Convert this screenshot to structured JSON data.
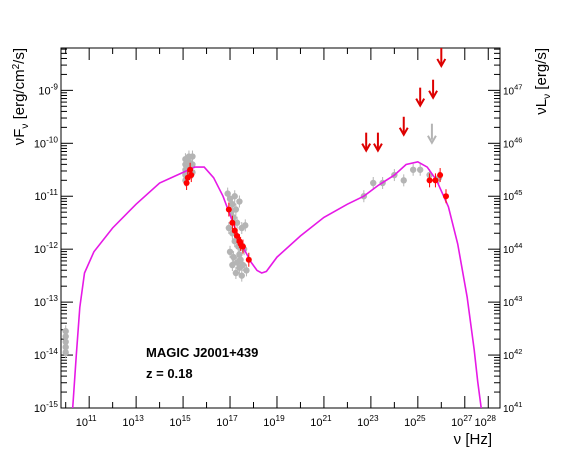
{
  "chart_data": {
    "type": "scatter",
    "annotations": [
      "MAGIC J2001+439",
      "z = 0.18"
    ],
    "xlabel": {
      "base": "ν",
      "unit": "[Hz]"
    },
    "ylabel": {
      "base": "νF",
      "sub": "ν",
      "unit_pre": "[erg/cm",
      "unit_sup": "2",
      "unit_post": "/s]"
    },
    "y2label": {
      "base": "νL",
      "sub": "ν",
      "unit": "[erg/s]"
    },
    "x_log_range": [
      9.8,
      28.5
    ],
    "y_log_range": [
      -15,
      -8.2
    ],
    "y2_log_range": [
      41,
      47.8
    ],
    "x_ticks": [
      {
        "exp": 11,
        "label": "10",
        "sup": "11"
      },
      {
        "exp": 13,
        "label": "10",
        "sup": "13"
      },
      {
        "exp": 15,
        "label": "10",
        "sup": "15"
      },
      {
        "exp": 17,
        "label": "10",
        "sup": "17"
      },
      {
        "exp": 19,
        "label": "10",
        "sup": "19"
      },
      {
        "exp": 21,
        "label": "10",
        "sup": "21"
      },
      {
        "exp": 23,
        "label": "10",
        "sup": "23"
      },
      {
        "exp": 25,
        "label": "10",
        "sup": "25"
      },
      {
        "exp": 27,
        "label": "10",
        "sup": "27"
      },
      {
        "exp": 28,
        "label": "10",
        "sup": "28"
      }
    ],
    "y_ticks": [
      {
        "exp": -15,
        "label": "10",
        "sup": "-15"
      },
      {
        "exp": -14,
        "label": "10",
        "sup": "-14"
      },
      {
        "exp": -13,
        "label": "10",
        "sup": "-13"
      },
      {
        "exp": -12,
        "label": "10",
        "sup": "-12"
      },
      {
        "exp": -11,
        "label": "10",
        "sup": "-11"
      },
      {
        "exp": -10,
        "label": "10",
        "sup": "-10"
      },
      {
        "exp": -9,
        "label": "10",
        "sup": "-9"
      }
    ],
    "y2_ticks": [
      {
        "exp": 41,
        "label": "10",
        "sup": "41"
      },
      {
        "exp": 42,
        "label": "10",
        "sup": "42"
      },
      {
        "exp": 43,
        "label": "10",
        "sup": "43"
      },
      {
        "exp": 44,
        "label": "10",
        "sup": "44"
      },
      {
        "exp": 45,
        "label": "10",
        "sup": "45"
      },
      {
        "exp": 46,
        "label": "10",
        "sup": "46"
      },
      {
        "exp": 47,
        "label": "10",
        "sup": "47"
      }
    ],
    "colors": {
      "model": "#e619e6",
      "archival": "#b4b4b4",
      "simultaneous": "#ff0000",
      "upper_limit": "#dd0000",
      "axis": "#000000"
    },
    "model_curve": [
      [
        10.3,
        -15.0
      ],
      [
        10.45,
        -14.0
      ],
      [
        10.6,
        -13.1
      ],
      [
        10.8,
        -12.45
      ],
      [
        11.2,
        -12.05
      ],
      [
        12.0,
        -11.6
      ],
      [
        13.0,
        -11.15
      ],
      [
        14.0,
        -10.75
      ],
      [
        15.0,
        -10.55
      ],
      [
        15.5,
        -10.45
      ],
      [
        15.9,
        -10.45
      ],
      [
        16.3,
        -10.65
      ],
      [
        16.7,
        -11.0
      ],
      [
        17.0,
        -11.35
      ],
      [
        17.3,
        -11.7
      ],
      [
        17.6,
        -12.0
      ],
      [
        17.9,
        -12.25
      ],
      [
        18.15,
        -12.4
      ],
      [
        18.35,
        -12.45
      ],
      [
        18.55,
        -12.42
      ],
      [
        19.0,
        -12.15
      ],
      [
        20.0,
        -11.75
      ],
      [
        21.0,
        -11.4
      ],
      [
        22.0,
        -11.15
      ],
      [
        22.7,
        -11.0
      ],
      [
        23.3,
        -10.8
      ],
      [
        24.0,
        -10.6
      ],
      [
        24.5,
        -10.4
      ],
      [
        25.0,
        -10.35
      ],
      [
        25.4,
        -10.45
      ],
      [
        25.8,
        -10.7
      ],
      [
        26.3,
        -11.2
      ],
      [
        26.7,
        -11.9
      ],
      [
        27.1,
        -12.9
      ],
      [
        27.4,
        -13.9
      ],
      [
        27.55,
        -14.5
      ],
      [
        27.7,
        -15.0
      ]
    ],
    "archival_points": [
      [
        10.0,
        -13.55
      ],
      [
        10.0,
        -13.65
      ],
      [
        10.0,
        -13.75
      ],
      [
        10.0,
        -13.85
      ],
      [
        10.0,
        -13.95
      ],
      [
        15.1,
        -10.3
      ],
      [
        15.1,
        -10.4
      ],
      [
        15.1,
        -10.5
      ],
      [
        15.1,
        -10.6
      ],
      [
        15.1,
        -10.7
      ],
      [
        15.25,
        -10.25
      ],
      [
        15.25,
        -10.35
      ],
      [
        15.25,
        -10.45
      ],
      [
        15.25,
        -10.55
      ],
      [
        15.4,
        -10.25
      ],
      [
        15.4,
        -10.4
      ],
      [
        15.4,
        -10.55
      ],
      [
        16.9,
        -10.95
      ],
      [
        17.0,
        -11.05
      ],
      [
        17.1,
        -11.15
      ],
      [
        17.05,
        -11.3
      ],
      [
        17.15,
        -11.4
      ],
      [
        17.25,
        -11.25
      ],
      [
        17.3,
        -11.5
      ],
      [
        16.95,
        -11.6
      ],
      [
        17.1,
        -11.7
      ],
      [
        17.2,
        -11.85
      ],
      [
        17.35,
        -11.95
      ],
      [
        17.0,
        -12.05
      ],
      [
        17.15,
        -12.15
      ],
      [
        17.3,
        -12.25
      ],
      [
        17.45,
        -12.2
      ],
      [
        17.4,
        -12.35
      ],
      [
        17.55,
        -12.3
      ],
      [
        17.6,
        -12.0
      ],
      [
        17.65,
        -11.55
      ],
      [
        17.5,
        -11.6
      ],
      [
        17.25,
        -12.45
      ],
      [
        17.5,
        -12.5
      ],
      [
        17.7,
        -12.4
      ],
      [
        17.4,
        -12.1
      ],
      [
        17.1,
        -12.3
      ],
      [
        17.2,
        -11.0
      ],
      [
        17.4,
        -11.1
      ],
      [
        22.7,
        -11.0
      ],
      [
        23.1,
        -10.75
      ],
      [
        23.5,
        -10.75
      ],
      [
        24.0,
        -10.6
      ],
      [
        24.4,
        -10.7
      ],
      [
        24.8,
        -10.5
      ],
      [
        25.1,
        -10.5
      ],
      [
        25.5,
        -10.6
      ],
      [
        25.9,
        -10.65
      ]
    ],
    "archival_upper_limits": [
      [
        25.6,
        -9.8
      ]
    ],
    "simultaneous_points": [
      [
        15.2,
        -10.65
      ],
      [
        15.35,
        -10.6
      ],
      [
        15.15,
        -10.75
      ],
      [
        15.3,
        -10.5
      ],
      [
        16.95,
        -11.25
      ],
      [
        17.1,
        -11.5
      ],
      [
        17.2,
        -11.65
      ],
      [
        17.3,
        -11.75
      ],
      [
        17.4,
        -11.85
      ],
      [
        17.45,
        -11.9
      ],
      [
        17.55,
        -11.95
      ],
      [
        17.8,
        -12.2
      ],
      [
        25.5,
        -10.7
      ],
      [
        25.75,
        -10.7
      ],
      [
        25.95,
        -10.6
      ],
      [
        26.2,
        -11.0
      ]
    ],
    "upper_limits": [
      [
        22.8,
        -9.95
      ],
      [
        23.3,
        -9.95
      ],
      [
        24.4,
        -9.65
      ],
      [
        25.1,
        -9.1
      ],
      [
        25.65,
        -8.95
      ],
      [
        26.0,
        -8.35
      ]
    ]
  }
}
